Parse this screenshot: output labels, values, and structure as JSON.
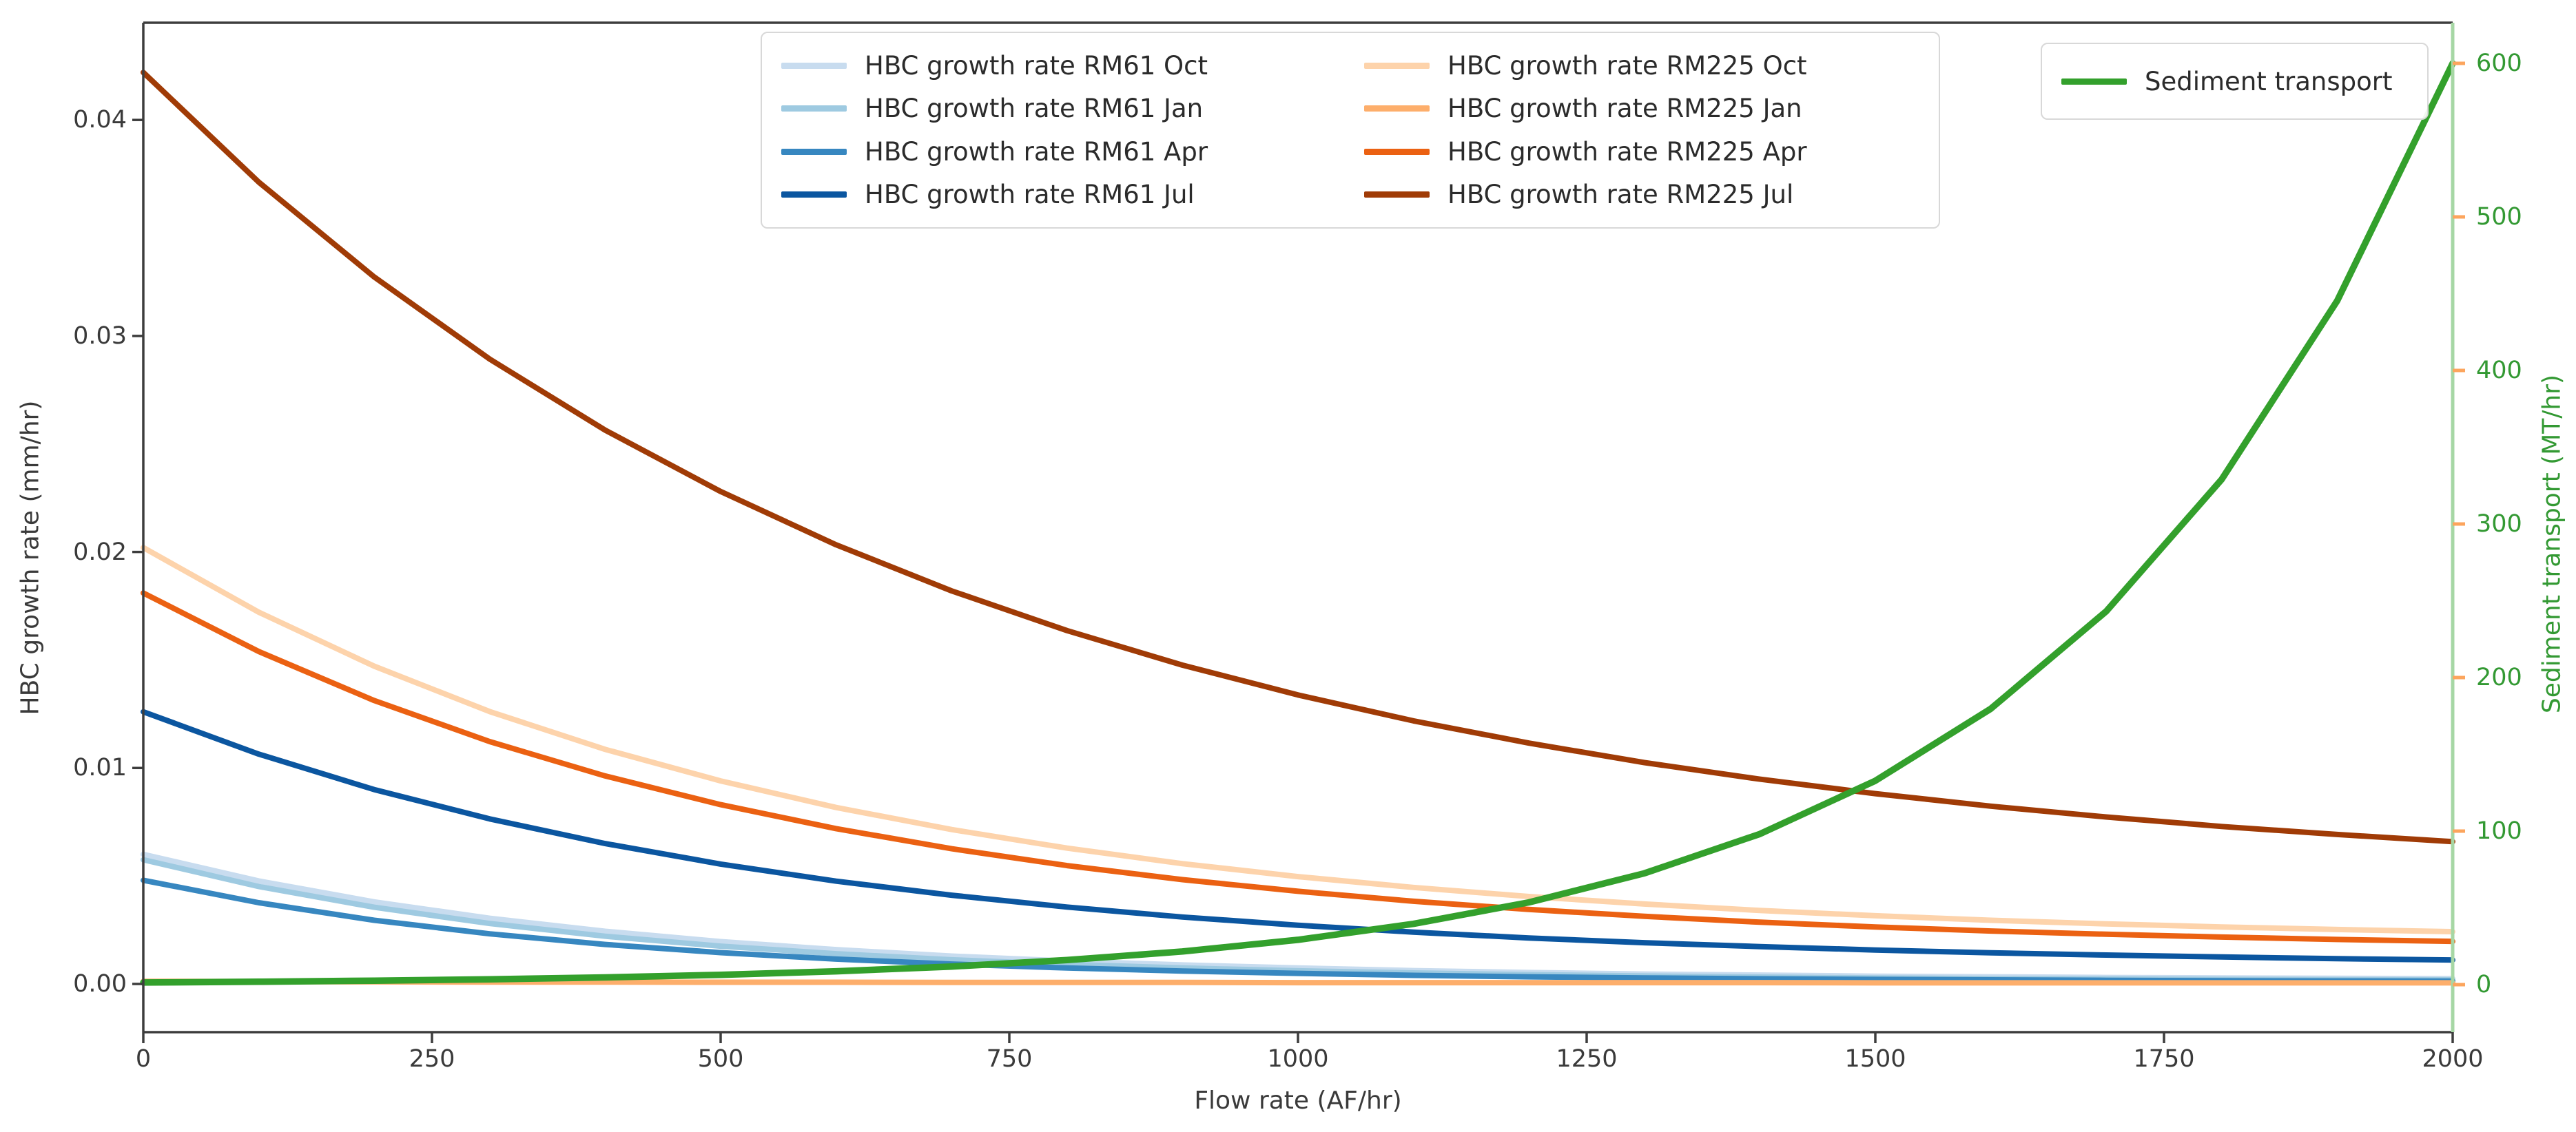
{
  "axes": {
    "xlabel": "Flow rate (AF/hr)",
    "ylabel_left": "HBC growth rate (mm/hr)",
    "ylabel_right": "Sediment transport (MT/hr)",
    "x_tick_labels": [
      "0",
      "250",
      "500",
      "750",
      "1000",
      "1250",
      "1500",
      "1750",
      "2000"
    ],
    "y_tick_labels_left": [
      "0.00",
      "0.01",
      "0.02",
      "0.03",
      "0.04"
    ],
    "y_tick_labels_right": [
      "0",
      "100",
      "200",
      "300",
      "400",
      "500",
      "600"
    ]
  },
  "colors": {
    "text": "#3a3a3a",
    "spine": "#3d3d3d",
    "right_spine_green": "#a6d7a4",
    "right_tick_orange": "#fca55d",
    "right_label_green": "#339933",
    "legend_border": "#d8d8d8"
  },
  "chart_data": {
    "type": "line",
    "x": [
      0,
      100,
      200,
      300,
      400,
      500,
      600,
      700,
      800,
      900,
      1000,
      1100,
      1200,
      1300,
      1400,
      1500,
      1600,
      1700,
      1800,
      1900,
      2000
    ],
    "xlabel": "Flow rate (AF/hr)",
    "ylabel_left": "HBC growth rate (mm/hr)",
    "ylabel_right": "Sediment transport (MT/hr)",
    "xlim": [
      0,
      2000
    ],
    "ylim_left": [
      -0.0022,
      0.0445
    ],
    "ylim_right": [
      -31,
      627
    ],
    "grid": false,
    "legend_positions": [
      "upper center (two columns)",
      "upper right (sediment)"
    ],
    "series": [
      {
        "name": "HBC growth rate RM61 Oct",
        "axis": "left",
        "color": "#c8dcef",
        "values": [
          0.006,
          0.00477,
          0.0038,
          0.00304,
          0.00244,
          0.00196,
          0.00159,
          0.00129,
          0.00106,
          0.00088,
          0.00074,
          0.00062,
          0.00053,
          0.00046,
          0.00041,
          0.00036,
          0.00033,
          0.0003,
          0.00028,
          0.00026,
          0.00025
        ]
      },
      {
        "name": "HBC growth rate RM61 Jan",
        "axis": "left",
        "color": "#9ecae1",
        "values": [
          0.00575,
          0.00451,
          0.00355,
          0.0028,
          0.00221,
          0.00175,
          0.0014,
          0.00112,
          0.00091,
          0.00074,
          0.00061,
          0.00051,
          0.00043,
          0.00037,
          0.00032,
          0.00028,
          0.00025,
          0.00023,
          0.00021,
          0.0002,
          0.00019
        ]
      },
      {
        "name": "HBC growth rate RM61 Apr",
        "axis": "left",
        "color": "#3787c0",
        "values": [
          0.0048,
          0.00376,
          0.00295,
          0.00232,
          0.00183,
          0.00145,
          0.00115,
          0.00092,
          0.00074,
          0.0006,
          0.00049,
          0.0004,
          0.00033,
          0.00028,
          0.00024,
          0.00021,
          0.00019,
          0.00017,
          0.00015,
          0.00014,
          0.00013
        ]
      },
      {
        "name": "HBC growth rate RM61 Jul",
        "axis": "left",
        "color": "#0b56a0",
        "values": [
          0.0126,
          0.01064,
          0.009,
          0.00764,
          0.0065,
          0.00555,
          0.00476,
          0.00411,
          0.00356,
          0.0031,
          0.00272,
          0.0024,
          0.00213,
          0.00191,
          0.00173,
          0.00157,
          0.00144,
          0.00134,
          0.00125,
          0.00117,
          0.00111
        ]
      },
      {
        "name": "HBC growth rate RM225 Oct",
        "axis": "left",
        "color": "#fdd3ab",
        "values": [
          0.0202,
          0.01721,
          0.01471,
          0.01261,
          0.01086,
          0.0094,
          0.00817,
          0.00715,
          0.00629,
          0.00557,
          0.00497,
          0.00447,
          0.00405,
          0.0037,
          0.0034,
          0.00316,
          0.00295,
          0.00278,
          0.00264,
          0.00252,
          0.00242
        ]
      },
      {
        "name": "HBC growth rate RM225 Jan",
        "axis": "left",
        "color": "#fdae6b",
        "values": [
          0.00012,
          0.00011,
          0.0001,
          9e-05,
          9e-05,
          8e-05,
          8e-05,
          7e-05,
          7e-05,
          7e-05,
          6e-05,
          6e-05,
          6e-05,
          6e-05,
          6e-05,
          5e-05,
          5e-05,
          5e-05,
          5e-05,
          5e-05,
          5e-05
        ]
      },
      {
        "name": "HBC growth rate RM225 Apr",
        "axis": "left",
        "color": "#eb6112",
        "values": [
          0.0181,
          0.01539,
          0.01312,
          0.01122,
          0.00963,
          0.0083,
          0.00719,
          0.00626,
          0.00548,
          0.00483,
          0.00429,
          0.00383,
          0.00345,
          0.00313,
          0.00286,
          0.00264,
          0.00245,
          0.0023,
          0.00217,
          0.00206,
          0.00197
        ]
      },
      {
        "name": "HBC growth rate RM225 Jul",
        "axis": "left",
        "color": "#a03b06",
        "values": [
          0.0422,
          0.03712,
          0.03273,
          0.02893,
          0.02564,
          0.0228,
          0.02033,
          0.0182,
          0.01636,
          0.01476,
          0.01338,
          0.01218,
          0.01115,
          0.01025,
          0.00948,
          0.00881,
          0.00823,
          0.00773,
          0.00729,
          0.00692,
          0.00659
        ]
      },
      {
        "name": "Sediment transport",
        "axis": "right",
        "color": "#33a02c",
        "values": [
          1.4,
          1.9,
          2.6,
          3.5,
          4.7,
          6.4,
          8.7,
          11.8,
          16.0,
          21.6,
          29.2,
          39.6,
          53.6,
          72.5,
          98.1,
          132.8,
          179.7,
          243.2,
          329.1,
          445.4,
          600.0
        ]
      }
    ]
  }
}
